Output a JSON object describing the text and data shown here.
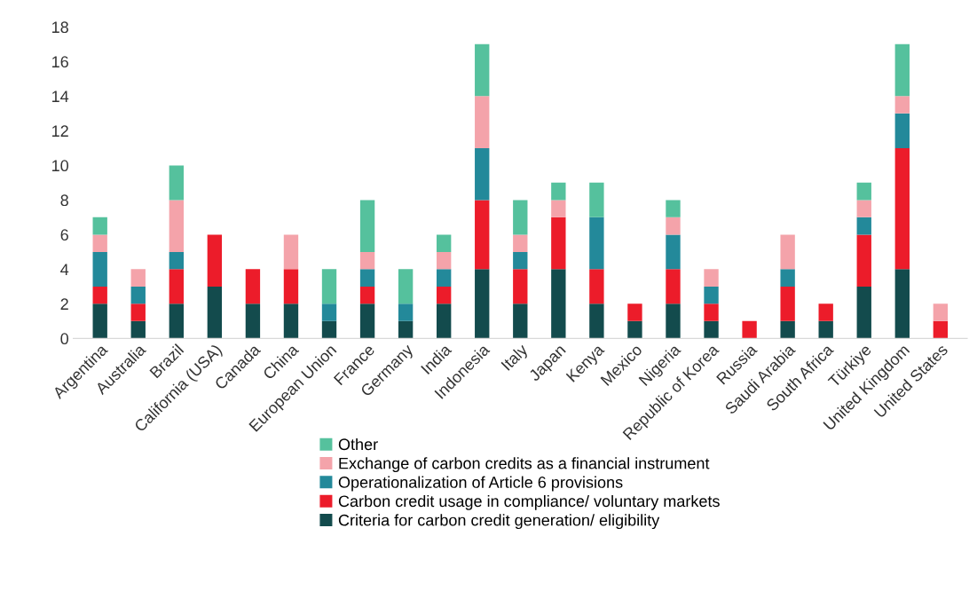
{
  "chart_data": {
    "type": "bar",
    "stacked": true,
    "categories": [
      "Argentina",
      "Australia",
      "Brazil",
      "California (USA)",
      "Canada",
      "China",
      "European Union",
      "France",
      "Germany",
      "India",
      "Indonesia",
      "Italy",
      "Japan",
      "Kenya",
      "Mexico",
      "Nigeria",
      "Republic of Korea",
      "Russia",
      "Saudi Arabia",
      "South Africa",
      "Türkiye",
      "United Kingdom",
      "United States"
    ],
    "series": [
      {
        "name": "Criteria for carbon credit generation/ eligibility",
        "color": "#134b4d",
        "values": [
          2,
          1,
          2,
          3,
          2,
          2,
          1,
          2,
          1,
          2,
          4,
          2,
          4,
          2,
          1,
          2,
          1,
          0,
          1,
          1,
          3,
          4,
          0
        ]
      },
      {
        "name": "Carbon credit usage in compliance/ voluntary markets",
        "color": "#ec1c2a",
        "values": [
          1,
          1,
          2,
          3,
          2,
          2,
          0,
          1,
          0,
          1,
          4,
          2,
          3,
          2,
          1,
          2,
          1,
          1,
          2,
          1,
          3,
          7,
          1
        ]
      },
      {
        "name": "Operationalization of Article 6 provisions",
        "color": "#23899a",
        "values": [
          2,
          1,
          1,
          0,
          0,
          0,
          1,
          1,
          1,
          1,
          3,
          1,
          0,
          3,
          0,
          2,
          1,
          0,
          1,
          0,
          1,
          2,
          0
        ]
      },
      {
        "name": "Exchange of carbon credits as a financial instrument",
        "color": "#f4a3aa",
        "values": [
          1,
          1,
          3,
          0,
          0,
          2,
          0,
          1,
          0,
          1,
          3,
          1,
          1,
          0,
          0,
          1,
          1,
          0,
          2,
          0,
          1,
          1,
          1
        ]
      },
      {
        "name": "Other",
        "color": "#55c19d",
        "values": [
          1,
          0,
          2,
          0,
          0,
          0,
          2,
          3,
          2,
          1,
          3,
          2,
          1,
          2,
          0,
          1,
          0,
          0,
          0,
          0,
          1,
          3,
          0
        ]
      }
    ],
    "ylim": [
      0,
      18
    ],
    "yticks": [
      0,
      2,
      4,
      6,
      8,
      10,
      12,
      14,
      16,
      18
    ],
    "grid": false,
    "legend": "bottom"
  }
}
